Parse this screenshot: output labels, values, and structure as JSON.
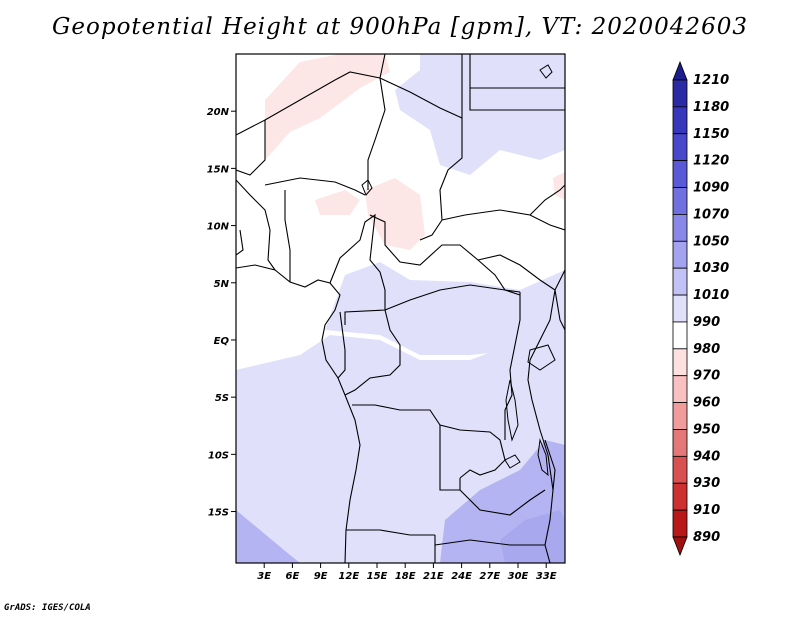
{
  "title": "Geopotential Height at 900hPa [gpm], VT: 2020042603",
  "credit": "GrADS: IGES/COLA",
  "map": {
    "lon_labels": [
      "3E",
      "6E",
      "9E",
      "12E",
      "15E",
      "18E",
      "21E",
      "24E",
      "27E",
      "30E",
      "33E"
    ],
    "lat_labels": [
      "20N",
      "15N",
      "10N",
      "5N",
      "EQ",
      "5S",
      "10S",
      "15S"
    ],
    "region": {
      "lon_min": 0,
      "lon_max": 35,
      "lat_min": -19.5,
      "lat_max": 25
    }
  },
  "colorbar": {
    "levels": [
      "1210",
      "1180",
      "1150",
      "1120",
      "1090",
      "1070",
      "1050",
      "1030",
      "1010",
      "990",
      "980",
      "970",
      "960",
      "950",
      "940",
      "930",
      "910",
      "890"
    ],
    "colors": [
      "#1c1c8e",
      "#2a2aa6",
      "#3737bc",
      "#4848cc",
      "#5a5ad8",
      "#7070e0",
      "#8888e8",
      "#a3a3f0",
      "#c2c2f6",
      "#e0e0fb",
      "#ffffff",
      "#fde0e0",
      "#f8c0c0",
      "#f09c9c",
      "#e47878",
      "#d85050",
      "#cc3030",
      "#b81818",
      "#a01010"
    ]
  },
  "fields": {
    "colors": {
      "blue1": "#e0e0fb",
      "blue2": "#c8c8f6",
      "blue3": "#b4b4f2",
      "blue4": "#a8a8ef",
      "pink1": "#fde6e6"
    }
  }
}
